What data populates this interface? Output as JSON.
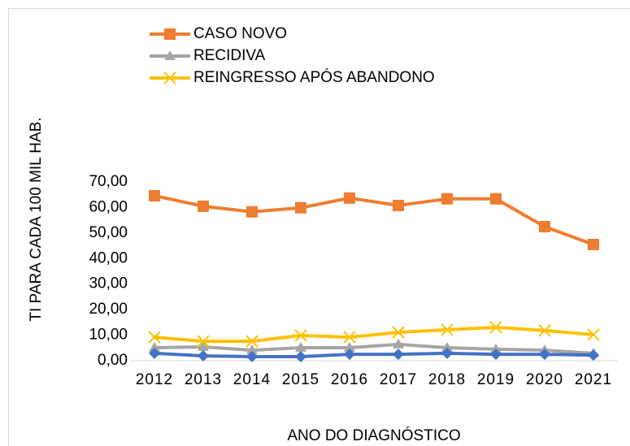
{
  "chart_data": {
    "type": "line",
    "y_label": "TI PARA CADA 100 MIL HAB.",
    "x_label": "ANO DO DIAGNÓSTICO",
    "categories": [
      "2012",
      "2013",
      "2014",
      "2015",
      "2016",
      "2017",
      "2018",
      "2019",
      "2020",
      "2021"
    ],
    "series": [
      {
        "name": "CASO NOVO",
        "color": "#ED7D31",
        "marker": "square",
        "values": [
          64.6,
          60.5,
          58.3,
          59.9,
          63.7,
          60.8,
          63.4,
          63.4,
          52.5,
          45.5
        ]
      },
      {
        "name": "RECIDIVA",
        "color": "#A5A5A5",
        "marker": "triangle",
        "values": [
          5.1,
          5.4,
          4.1,
          5.1,
          5.1,
          6.4,
          5.1,
          4.5,
          4.1,
          2.9
        ]
      },
      {
        "name": "REINGRESSO APÓS ABANDONO",
        "color": "#FFC000",
        "marker": "x",
        "values": [
          9.2,
          7.6,
          7.6,
          9.9,
          9.2,
          11.1,
          12.1,
          13.1,
          11.8,
          10.2
        ]
      },
      {
        "color": "#4472C4",
        "marker": "diamond",
        "values": [
          2.9,
          1.9,
          1.6,
          1.6,
          2.5,
          2.5,
          2.9,
          2.5,
          2.5,
          2.2
        ]
      }
    ],
    "ylim": [
      0,
      70
    ],
    "yticks": [
      {
        "value": 0,
        "label": "0,00"
      },
      {
        "value": 10,
        "label": "10,00"
      },
      {
        "value": 20,
        "label": "20,00"
      },
      {
        "value": 30,
        "label": "30,00"
      },
      {
        "value": 40,
        "label": "40,00"
      },
      {
        "value": 50,
        "label": "50,00"
      },
      {
        "value": 60,
        "label": "60,00"
      },
      {
        "value": 70,
        "label": "70,00"
      }
    ],
    "legend": "top-left"
  }
}
